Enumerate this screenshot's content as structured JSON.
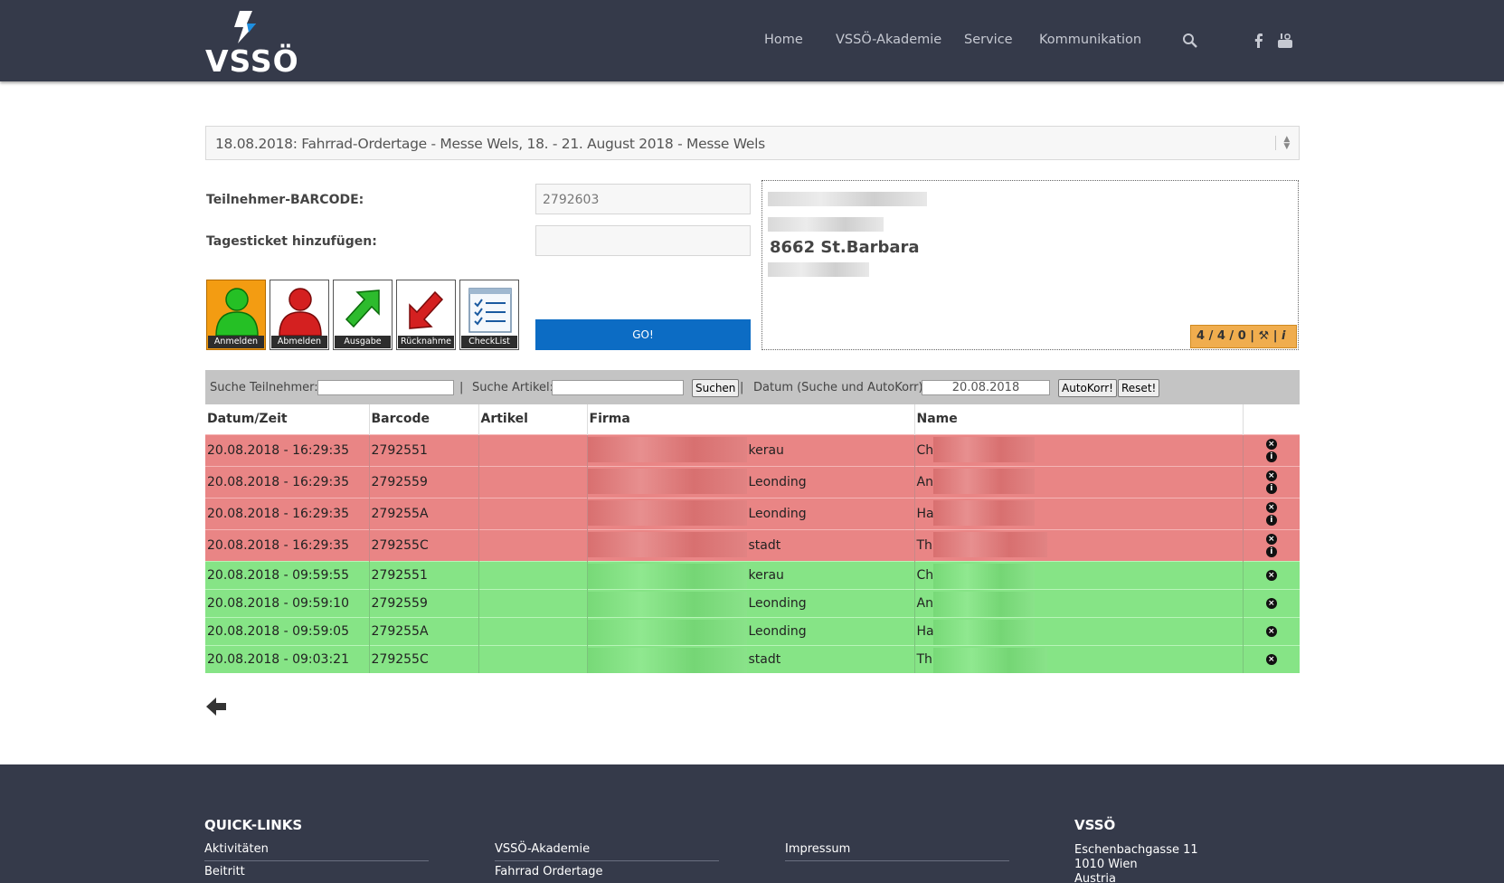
{
  "header": {
    "logo_text": "VSSÖ",
    "nav": [
      "Home",
      "VSSÖ-Akademie",
      "Service",
      "Kommunikation"
    ],
    "icons": [
      "search-icon",
      "facebook-icon",
      "youtube-icon"
    ]
  },
  "event": {
    "selected": "18.08.2018: Fahrrad-Ordertage - Messe Wels, 18. - 21. August 2018 - Messe Wels"
  },
  "form": {
    "barcode_label": "Teilnehmer-BARCODE:",
    "barcode_value": "2792603",
    "ticket_label": "Tagesticket hinzufügen:",
    "ticket_value": "",
    "go_label": "GO!"
  },
  "actions": [
    {
      "label": "Anmelden",
      "icon": "person-green-icon",
      "active": true
    },
    {
      "label": "Abmelden",
      "icon": "person-red-icon",
      "active": false
    },
    {
      "label": "Ausgabe",
      "icon": "arrow-up-green-icon",
      "active": false
    },
    {
      "label": "Rücknahme",
      "icon": "arrow-down-red-icon",
      "active": false
    },
    {
      "label": "CheckList",
      "icon": "checklist-icon",
      "active": false
    }
  ],
  "info": {
    "city": "8662 St.Barbara",
    "counter": "4 / 4 / 0"
  },
  "search": {
    "teilnehmer_label": "Suche Teilnehmer:",
    "artikel_label": "Suche Artikel:",
    "suchen_button": "Suchen",
    "datum_label": "Datum (Suche und AutoKorr):",
    "datum_value": "20.08.2018",
    "autokorr_button": "AutoKorr!",
    "reset_button": "Reset!",
    "separator": "|"
  },
  "table": {
    "columns": [
      "Datum/Zeit",
      "Barcode",
      "Artikel",
      "Firma",
      "Name"
    ],
    "rows": [
      {
        "status": "red",
        "datetime": "20.08.2018 - 16:29:35",
        "barcode": "2792551",
        "artikel": "",
        "firma": "kerau",
        "name": "Ch"
      },
      {
        "status": "red",
        "datetime": "20.08.2018 - 16:29:35",
        "barcode": "2792559",
        "artikel": "",
        "firma": "Leonding",
        "name": "An"
      },
      {
        "status": "red",
        "datetime": "20.08.2018 - 16:29:35",
        "barcode": "279255A",
        "artikel": "",
        "firma": "Leonding",
        "name": "Ha"
      },
      {
        "status": "red",
        "datetime": "20.08.2018 - 16:29:35",
        "barcode": "279255C",
        "artikel": "",
        "firma": "stadt",
        "name": "Th"
      },
      {
        "status": "green",
        "datetime": "20.08.2018 - 09:59:55",
        "barcode": "2792551",
        "artikel": "",
        "firma": "kerau",
        "name": "Ch"
      },
      {
        "status": "green",
        "datetime": "20.08.2018 - 09:59:10",
        "barcode": "2792559",
        "artikel": "",
        "firma": "Leonding",
        "name": "An"
      },
      {
        "status": "green",
        "datetime": "20.08.2018 - 09:59:05",
        "barcode": "279255A",
        "artikel": "",
        "firma": "Leonding",
        "name": "Ha"
      },
      {
        "status": "green",
        "datetime": "20.08.2018 - 09:03:21",
        "barcode": "279255C",
        "artikel": "",
        "firma": "stadt",
        "name": "Th"
      }
    ]
  },
  "footer": {
    "quicklinks_title": "QUICK-LINKS",
    "links_col1": [
      "Aktivitäten",
      "Beitritt"
    ],
    "links_col2": [
      "VSSÖ-Akademie",
      "Fahrrad Ordertage"
    ],
    "links_col3": [
      "Impressum"
    ],
    "org_title": "VSSÖ",
    "address": [
      "Eschenbachgasse 11",
      "1010 Wien",
      "Austria"
    ]
  },
  "colors": {
    "header_bg": "#353a4a",
    "row_red": "#e98585",
    "row_green": "#86e486",
    "go_button": "#0c6cc4",
    "counter_badge": "#f0ad4e",
    "accent_blue": "#1e8fe0"
  }
}
